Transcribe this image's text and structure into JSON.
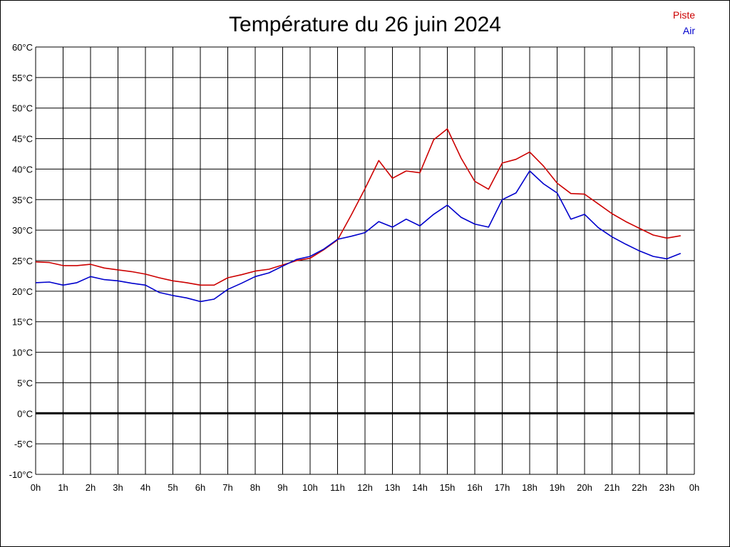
{
  "chart_data": {
    "type": "line",
    "title": "Température du 26 juin 2024",
    "xlabel": "",
    "ylabel": "",
    "y_tick_labels": [
      "60°C",
      "55°C",
      "50°C",
      "45°C",
      "40°C",
      "35°C",
      "30°C",
      "25°C",
      "20°C",
      "15°C",
      "10°C",
      "5°C",
      "0°C",
      "-5°C",
      "-10°C"
    ],
    "x_tick_labels": [
      "0h",
      "1h",
      "2h",
      "3h",
      "4h",
      "5h",
      "6h",
      "7h",
      "8h",
      "9h",
      "10h",
      "11h",
      "12h",
      "13h",
      "14h",
      "15h",
      "16h",
      "17h",
      "18h",
      "19h",
      "20h",
      "21h",
      "22h",
      "23h",
      "0h"
    ],
    "ylim": [
      -10,
      60
    ],
    "xlim": [
      0,
      24
    ],
    "grid": true,
    "zero_line": true,
    "legend_position": "top-right",
    "series": [
      {
        "name": "Piste",
        "color": "#cc0000",
        "x": [
          0,
          0.5,
          1,
          1.5,
          2,
          2.5,
          3,
          3.5,
          4,
          4.5,
          5,
          5.5,
          6,
          6.5,
          7,
          7.5,
          8,
          8.5,
          9,
          9.5,
          10,
          10.5,
          11,
          11.5,
          12,
          12.5,
          13,
          13.5,
          14,
          14.5,
          15,
          15.5,
          16,
          16.5,
          17,
          17.5,
          18,
          18.5,
          19,
          19.5,
          20,
          20.5,
          21,
          21.5,
          22,
          22.5,
          23,
          23.5
        ],
        "values": [
          24.8,
          24.7,
          24.2,
          24.2,
          24.4,
          23.8,
          23.5,
          23.2,
          22.8,
          22.2,
          21.7,
          21.4,
          21.0,
          21.0,
          22.2,
          22.7,
          23.3,
          23.6,
          24.3,
          25.0,
          25.4,
          26.8,
          28.4,
          32.5,
          36.8,
          41.4,
          38.5,
          39.7,
          39.4,
          44.8,
          46.6,
          41.8,
          38.0,
          36.7,
          41.0,
          41.6,
          42.8,
          40.5,
          37.7,
          36.0,
          35.9,
          34.3,
          32.7,
          31.4,
          30.3,
          29.2,
          28.7,
          29.1
        ]
      },
      {
        "name": "Air",
        "color": "#0000cc",
        "x": [
          0,
          0.5,
          1,
          1.5,
          2,
          2.5,
          3,
          3.5,
          4,
          4.5,
          5,
          5.5,
          6,
          6.5,
          7,
          7.5,
          8,
          8.5,
          9,
          9.5,
          10,
          10.5,
          11,
          11.5,
          12,
          12.5,
          13,
          13.5,
          14,
          14.5,
          15,
          15.5,
          16,
          16.5,
          17,
          17.5,
          18,
          18.5,
          19,
          19.5,
          20,
          20.5,
          21,
          21.5,
          22,
          22.5,
          23,
          23.5
        ],
        "values": [
          21.4,
          21.5,
          21.0,
          21.4,
          22.4,
          21.9,
          21.7,
          21.3,
          21.0,
          19.8,
          19.3,
          18.9,
          18.3,
          18.7,
          20.3,
          21.3,
          22.4,
          23.0,
          24.1,
          25.2,
          25.7,
          26.9,
          28.5,
          29.0,
          29.6,
          31.4,
          30.5,
          31.8,
          30.7,
          32.6,
          34.1,
          32.1,
          31.0,
          30.5,
          35.0,
          36.1,
          39.7,
          37.6,
          36.1,
          31.8,
          32.6,
          30.4,
          28.9,
          27.7,
          26.6,
          25.7,
          25.3,
          26.2
        ]
      }
    ]
  }
}
